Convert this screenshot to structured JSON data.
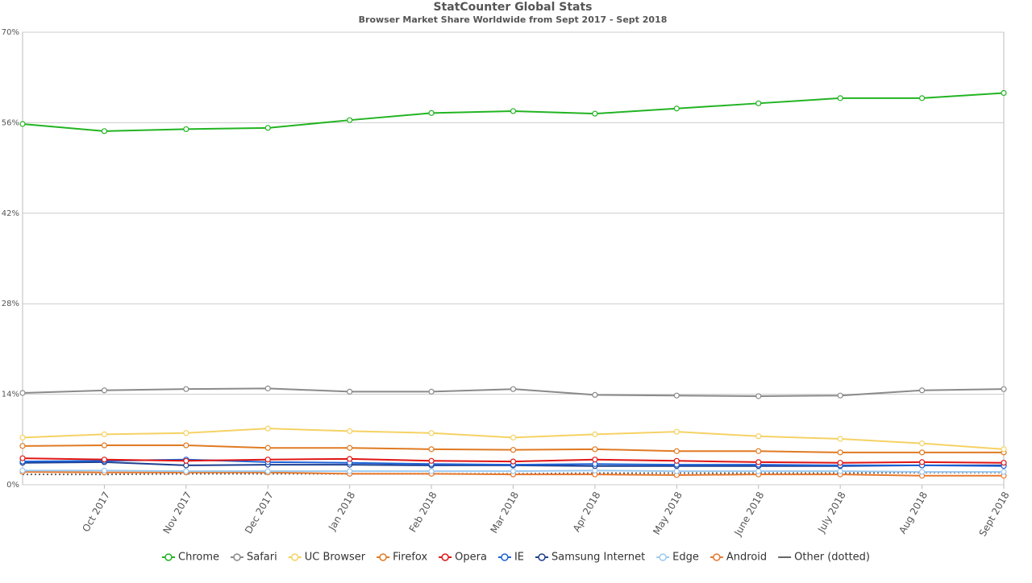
{
  "chart_data": {
    "type": "line",
    "title": "StatCounter Global Stats",
    "subtitle": "Browser Market Share Worldwide from Sept 2017 - Sept 2018",
    "categories": [
      null,
      "Oct 2017",
      "Nov 2017",
      "Dec 2017",
      "Jan 2018",
      "Feb 2018",
      "Mar 2018",
      "Apr 2018",
      "May 2018",
      "June 2018",
      "July 2018",
      "Aug 2018",
      "Sept 2018"
    ],
    "ylim": [
      0,
      70
    ],
    "yticks": [
      {
        "value": 0,
        "label": "0%"
      },
      {
        "value": 14,
        "label": "14%"
      },
      {
        "value": 28,
        "label": "28%"
      },
      {
        "value": 42,
        "label": "42%"
      },
      {
        "value": 56,
        "label": "56%"
      },
      {
        "value": 70,
        "label": "70%"
      }
    ],
    "grid": true,
    "legend": "bottom",
    "series": [
      {
        "name": "Chrome",
        "color": "#22b422",
        "values": [
          55.8,
          54.7,
          55.0,
          55.2,
          56.4,
          57.5,
          57.8,
          57.4,
          58.2,
          59.0,
          59.8,
          59.8,
          60.6
        ]
      },
      {
        "name": "Safari",
        "color": "#8a8a8a",
        "values": [
          14.2,
          14.6,
          14.8,
          14.9,
          14.4,
          14.4,
          14.8,
          13.9,
          13.8,
          13.7,
          13.8,
          14.6,
          14.8
        ]
      },
      {
        "name": "UC Browser",
        "color": "#f5d264",
        "values": [
          7.3,
          7.8,
          8.0,
          8.7,
          8.3,
          8.0,
          7.3,
          7.8,
          8.2,
          7.5,
          7.1,
          6.4,
          5.5
        ]
      },
      {
        "name": "Firefox",
        "color": "#e07a22",
        "values": [
          6.0,
          6.1,
          6.1,
          5.7,
          5.7,
          5.5,
          5.4,
          5.5,
          5.2,
          5.2,
          5.0,
          5.0,
          5.0
        ]
      },
      {
        "name": "Opera",
        "color": "#e01616",
        "values": [
          4.1,
          3.9,
          3.7,
          3.9,
          4.0,
          3.7,
          3.6,
          3.9,
          3.7,
          3.5,
          3.4,
          3.5,
          3.4
        ]
      },
      {
        "name": "IE",
        "color": "#1d62d6",
        "values": [
          3.6,
          3.7,
          3.9,
          3.5,
          3.4,
          3.2,
          3.1,
          3.2,
          3.1,
          3.1,
          3.0,
          3.0,
          2.9
        ]
      },
      {
        "name": "Samsung Internet",
        "color": "#1f3f8f",
        "values": [
          3.4,
          3.5,
          3.0,
          3.1,
          3.1,
          3.0,
          3.0,
          2.9,
          2.9,
          2.9,
          2.9,
          3.0,
          3.0
        ]
      },
      {
        "name": "Edge",
        "color": "#9ccaf0",
        "values": [
          2.2,
          2.2,
          2.1,
          2.1,
          2.1,
          2.1,
          2.1,
          2.2,
          2.1,
          2.1,
          2.1,
          2.0,
          2.0
        ]
      },
      {
        "name": "Android",
        "color": "#e8782c",
        "values": [
          2.0,
          1.9,
          1.9,
          1.9,
          1.7,
          1.7,
          1.6,
          1.6,
          1.5,
          1.6,
          1.6,
          1.4,
          1.4
        ]
      },
      {
        "name": "Other (dotted)",
        "color": "#666666",
        "dotted": true,
        "markers": false,
        "values": [
          1.6,
          1.6,
          1.7,
          1.7,
          1.7,
          1.7,
          1.7,
          1.8,
          1.8,
          1.8,
          1.8,
          1.9,
          1.9
        ]
      }
    ]
  }
}
